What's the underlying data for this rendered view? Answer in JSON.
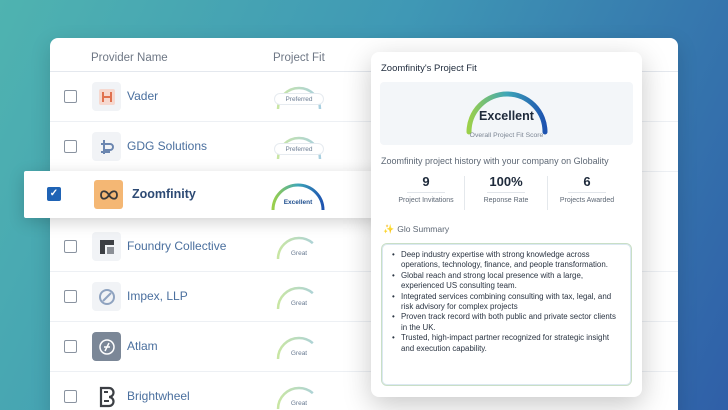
{
  "table": {
    "col_provider": "Provider Name",
    "col_fit": "Project Fit",
    "rows": [
      {
        "name": "Vader",
        "fit": "Preferred",
        "logo_icon": "vader-logo-icon"
      },
      {
        "name": "GDG Solutions",
        "fit": "Preferred",
        "logo_icon": "gdg-logo-icon"
      },
      {
        "name": "Zoomfinity",
        "fit": "Excellent",
        "logo_icon": "infinity-logo-icon",
        "selected": true
      },
      {
        "name": "Foundry Collective",
        "fit": "Great",
        "logo_icon": "foundry-logo-icon"
      },
      {
        "name": "Impex, LLP",
        "fit": "Great",
        "logo_icon": "impex-logo-icon"
      },
      {
        "name": "Atlam",
        "fit": "Great",
        "logo_icon": "atlam-logo-icon"
      },
      {
        "name": "Brightwheel",
        "fit": "Great",
        "logo_icon": "brightwheel-logo-icon"
      }
    ]
  },
  "popup": {
    "title": "Zoomfinity's Project Fit",
    "score_word": "Excellent",
    "score_caption": "Overall Project Fit Score",
    "history_text": "Zoomfinity project history with your company on Globality",
    "stats": [
      {
        "value": "9",
        "label": "Project Invitations"
      },
      {
        "value": "100%",
        "label": "Reponse Rate"
      },
      {
        "value": "6",
        "label": "Projects Awarded"
      }
    ],
    "summary_title": "Glo Summary",
    "summary_icon": "sparkle-icon",
    "summary_items": [
      "Deep industry expertise with strong knowledge across operations, technology, finance, and people transformation.",
      "Global reach and strong local presence with a large, experienced US consulting team.",
      "Integrated services combining consulting with tax, legal, and risk advisory for complex projects",
      "Proven track record with both public and private sector clients in the UK.",
      "Trusted, high-impact partner recognized for strategic insight and execution capability."
    ]
  },
  "colors": {
    "accent": "#1f63b5",
    "link_name": "#4a6f9e",
    "gauge_green": "#8cc63f",
    "gauge_blue": "#1e5bb5"
  }
}
